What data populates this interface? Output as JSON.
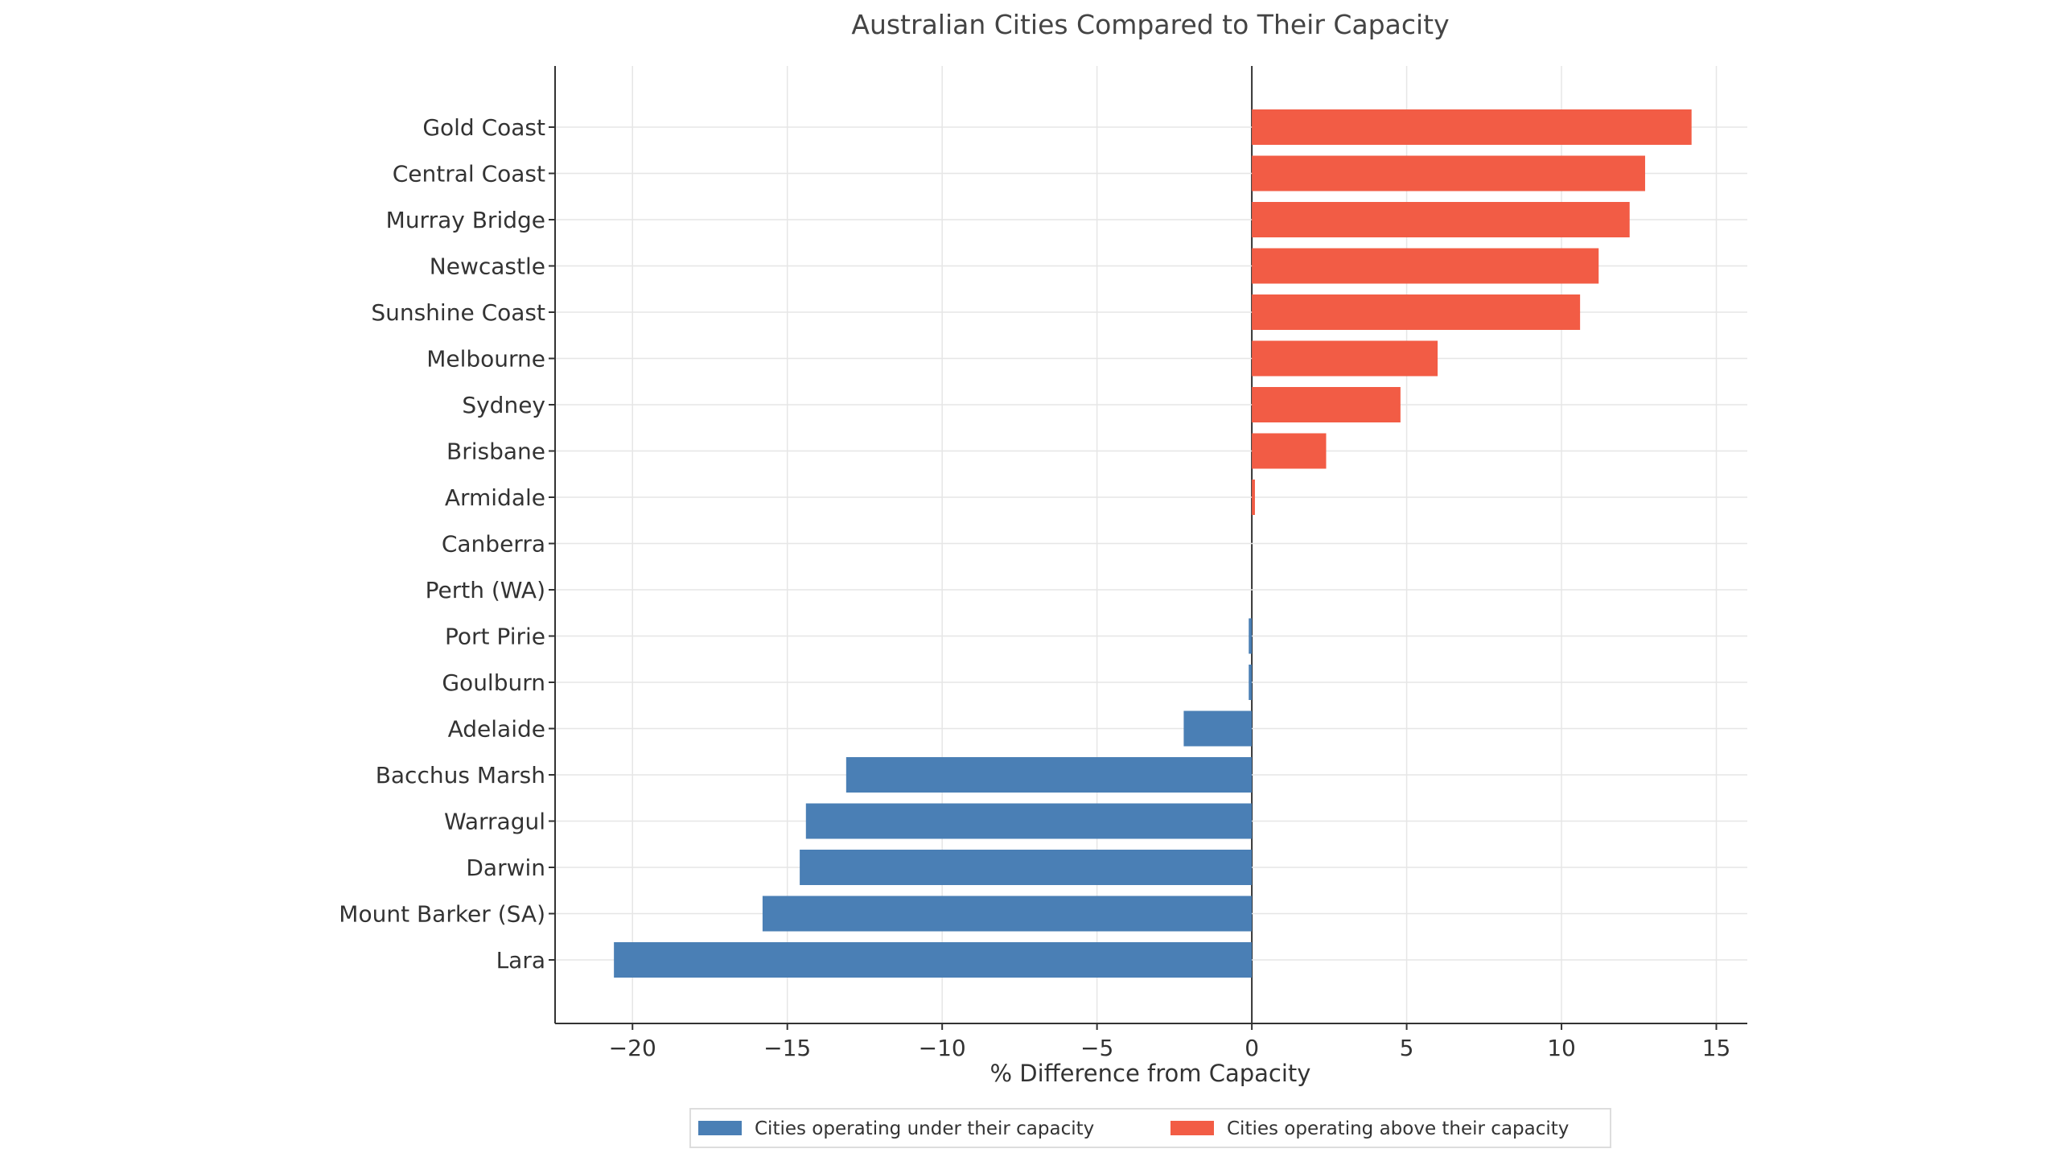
{
  "chart_data": {
    "type": "bar",
    "orientation": "horizontal",
    "title": "Australian Cities Compared to Their Capacity",
    "xlabel": "% Difference from Capacity",
    "ylabel": "",
    "xlim": [
      -22.5,
      16
    ],
    "xticks": [
      -20,
      -15,
      -10,
      -5,
      0,
      5,
      10,
      15
    ],
    "xtick_labels": [
      "−20",
      "−15",
      "−10",
      "−5",
      "0",
      "5",
      "10",
      "15"
    ],
    "grid": true,
    "legend_position": "bottom-center",
    "categories": [
      "Gold Coast",
      "Central Coast",
      "Murray Bridge",
      "Newcastle",
      "Sunshine Coast",
      "Melbourne",
      "Sydney",
      "Brisbane",
      "Armidale",
      "Canberra",
      "Perth (WA)",
      "Port Pirie",
      "Goulburn",
      "Adelaide",
      "Bacchus Marsh",
      "Warragul",
      "Darwin",
      "Mount Barker (SA)",
      "Lara"
    ],
    "values": [
      14.2,
      12.7,
      12.2,
      11.2,
      10.6,
      6.0,
      4.8,
      2.4,
      0.1,
      0.0,
      0.0,
      -0.1,
      -0.1,
      -2.2,
      -13.1,
      -14.4,
      -14.6,
      -15.8,
      -20.6
    ],
    "series": [
      {
        "name": "Cities operating under their capacity",
        "color": "#4a7fb5"
      },
      {
        "name": "Cities operating above their capacity",
        "color": "#f25c45"
      }
    ]
  }
}
